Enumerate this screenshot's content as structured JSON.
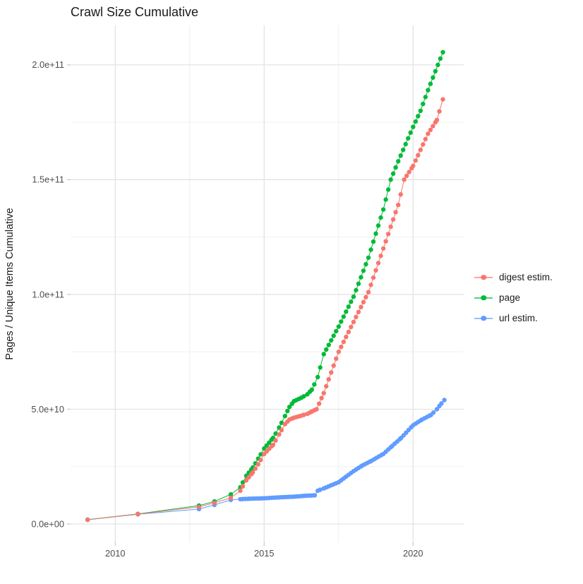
{
  "colors": {
    "background": "#FFFFFF",
    "grid_major": "#E3E3E3",
    "grid_minor": "#F0F0F0",
    "tick_mark": "#CCCCCC",
    "axis_text": "#4D4D4D",
    "title_text": "#1A1A1A"
  },
  "chart_data": {
    "type": "line",
    "subtype": "scatter-line cumulative time series",
    "title": "Crawl Size Cumulative",
    "xlabel": "",
    "ylabel": "Pages / Unique Items Cumulative",
    "legend_position": "right",
    "grid": true,
    "values_unit": "items, stored in billions (1e9)",
    "x_domain": [
      2008.5,
      2021.7
    ],
    "y_domain_e9": [
      -8,
      217.2
    ],
    "x_ticks": [
      {
        "value": 2010,
        "label": "2010"
      },
      {
        "value": 2015,
        "label": "2015"
      },
      {
        "value": 2020,
        "label": "2020"
      }
    ],
    "x_minor_gridlines": [
      2012.5,
      2017.5
    ],
    "y_ticks_e9": [
      {
        "value": 0,
        "label": "0.0e+00"
      },
      {
        "value": 50,
        "label": "5.0e+10"
      },
      {
        "value": 100,
        "label": "1.0e+11"
      },
      {
        "value": 150,
        "label": "1.5e+11"
      },
      {
        "value": 200,
        "label": "2.0e+11"
      }
    ],
    "y_minor_gridlines_e9": [
      25,
      75,
      125,
      175
    ],
    "point_render": {
      "dense_from_year": 2014.2,
      "interval_years": 0.0833
    },
    "series": [
      {
        "name": "digest estim.",
        "color": "#F8766D",
        "points_year_value_e9": [
          [
            2009.07,
            1.85
          ],
          [
            2010.76,
            4.3
          ],
          [
            2012.81,
            7.4
          ],
          [
            2013.33,
            9.2
          ],
          [
            2013.88,
            11.4
          ],
          [
            2014.2,
            14.5
          ],
          [
            2014.4,
            19.0
          ],
          [
            2014.62,
            22.5
          ],
          [
            2014.8,
            26.0
          ],
          [
            2015.0,
            30.5
          ],
          [
            2015.3,
            34.5
          ],
          [
            2015.5,
            39.0
          ],
          [
            2015.7,
            43.5
          ],
          [
            2015.85,
            45.5
          ],
          [
            2016.0,
            46.3
          ],
          [
            2016.25,
            47.2
          ],
          [
            2016.45,
            48.0
          ],
          [
            2016.6,
            49.0
          ],
          [
            2016.76,
            50.0
          ],
          [
            2017.0,
            57.0
          ],
          [
            2017.5,
            75.0
          ],
          [
            2018.0,
            88.0
          ],
          [
            2018.5,
            101.0
          ],
          [
            2019.0,
            120.0
          ],
          [
            2019.5,
            139.0
          ],
          [
            2019.7,
            150.0
          ],
          [
            2020.0,
            156.0
          ],
          [
            2020.5,
            170.0
          ],
          [
            2020.8,
            176.0
          ],
          [
            2021.0,
            185.0
          ]
        ]
      },
      {
        "name": "page",
        "color": "#00BA38",
        "points_year_value_e9": [
          [
            2009.07,
            1.9
          ],
          [
            2010.76,
            4.4
          ],
          [
            2012.81,
            8.0
          ],
          [
            2013.33,
            9.8
          ],
          [
            2013.88,
            12.9
          ],
          [
            2014.2,
            16.0
          ],
          [
            2014.4,
            21.0
          ],
          [
            2014.62,
            24.6
          ],
          [
            2014.8,
            28.5
          ],
          [
            2015.0,
            32.9
          ],
          [
            2015.3,
            37.5
          ],
          [
            2015.5,
            42.0
          ],
          [
            2015.7,
            47.0
          ],
          [
            2015.85,
            51.0
          ],
          [
            2016.0,
            53.5
          ],
          [
            2016.25,
            55.0
          ],
          [
            2016.45,
            56.5
          ],
          [
            2016.6,
            58.5
          ],
          [
            2016.8,
            64.0
          ],
          [
            2017.0,
            74.0
          ],
          [
            2017.5,
            86.0
          ],
          [
            2018.0,
            99.0
          ],
          [
            2018.5,
            116.0
          ],
          [
            2019.0,
            137.0
          ],
          [
            2019.25,
            150.0
          ],
          [
            2019.5,
            158.0
          ],
          [
            2020.0,
            173.0
          ],
          [
            2020.25,
            180.0
          ],
          [
            2020.5,
            189.0
          ],
          [
            2021.0,
            205.5
          ]
        ]
      },
      {
        "name": "url estim.",
        "color": "#619CFF",
        "points_year_value_e9": [
          [
            2009.07,
            1.8
          ],
          [
            2010.76,
            4.2
          ],
          [
            2012.81,
            6.5
          ],
          [
            2013.33,
            8.3
          ],
          [
            2013.88,
            10.5
          ],
          [
            2014.2,
            10.8
          ],
          [
            2014.5,
            11.0
          ],
          [
            2015.0,
            11.2
          ],
          [
            2015.5,
            11.6
          ],
          [
            2016.0,
            11.9
          ],
          [
            2016.4,
            12.3
          ],
          [
            2016.7,
            12.5
          ],
          [
            2016.8,
            14.5
          ],
          [
            2017.0,
            15.5
          ],
          [
            2017.5,
            18.2
          ],
          [
            2018.0,
            23.0
          ],
          [
            2018.3,
            25.5
          ],
          [
            2018.6,
            27.5
          ],
          [
            2019.0,
            30.5
          ],
          [
            2019.3,
            34.0
          ],
          [
            2019.6,
            37.5
          ],
          [
            2020.0,
            43.0
          ],
          [
            2020.3,
            45.5
          ],
          [
            2020.6,
            47.5
          ],
          [
            2020.8,
            50.0
          ],
          [
            2020.95,
            52.5
          ],
          [
            2021.05,
            54.0
          ]
        ]
      }
    ]
  }
}
